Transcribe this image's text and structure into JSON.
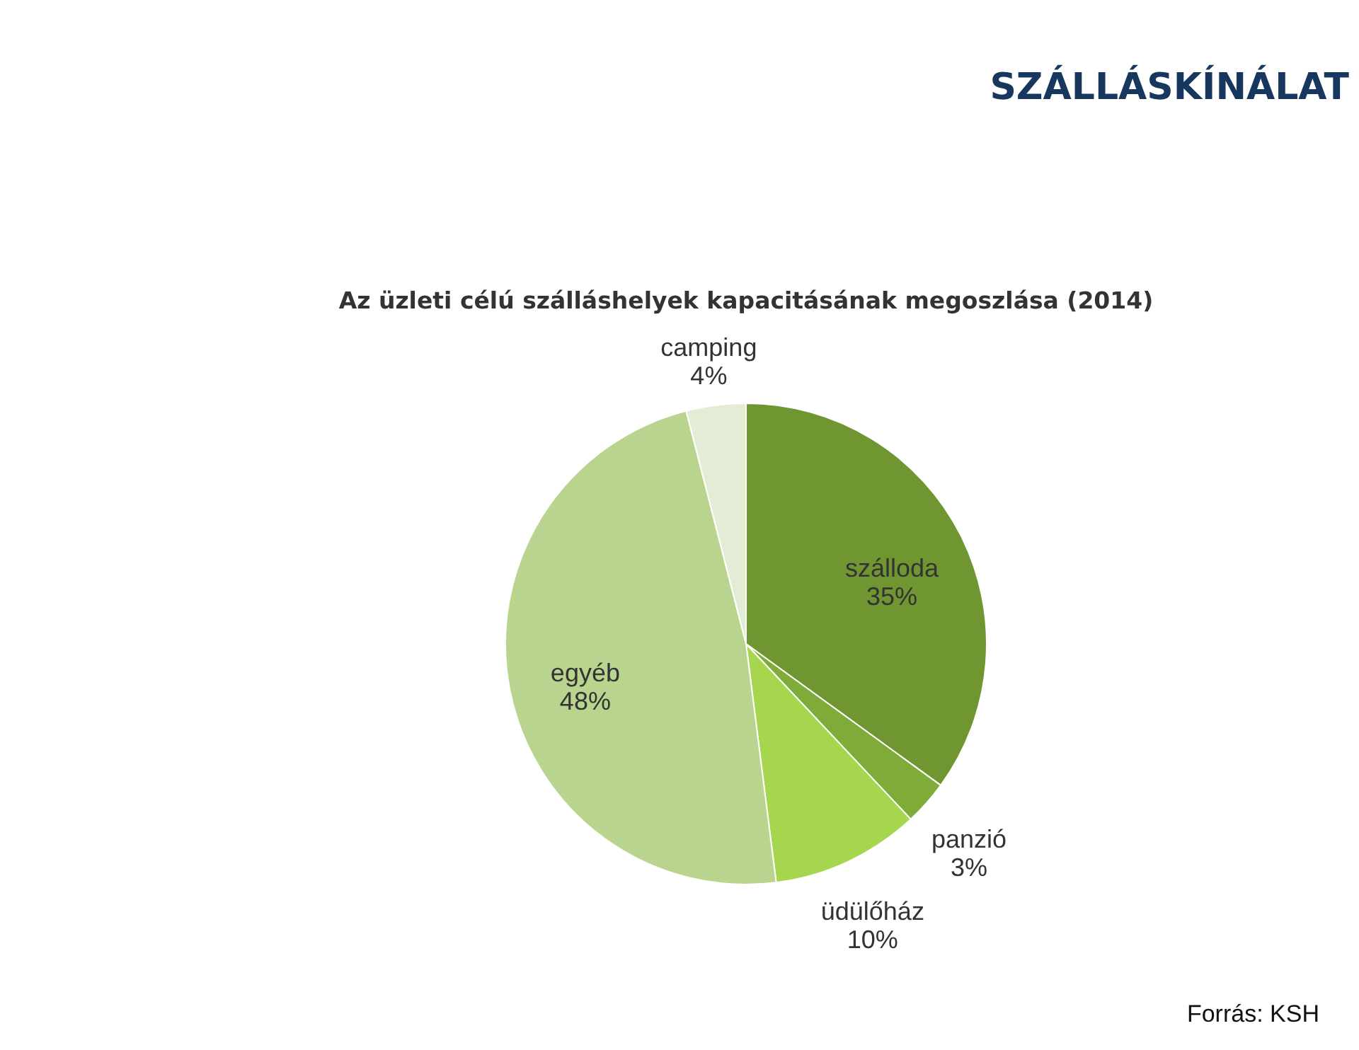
{
  "chart_data": {
    "type": "pie",
    "title": "SZÁLLÁSKÍNÁLAT",
    "subtitle": "Az üzleti célú szálláshelyek kapacitásának megoszlása (2014)",
    "categories": [
      "szálloda",
      "panzió",
      "üdülőház",
      "egyéb",
      "camping"
    ],
    "values": [
      35,
      3,
      10,
      48,
      4
    ],
    "value_labels": [
      "35%",
      "3%",
      "10%",
      "48%",
      "4%"
    ],
    "colors": [
      "#6f9630",
      "#7fab38",
      "#a6d64e",
      "#b9d48e",
      "#e3edd6"
    ],
    "annotations": [
      "Forrás: KSH"
    ]
  }
}
